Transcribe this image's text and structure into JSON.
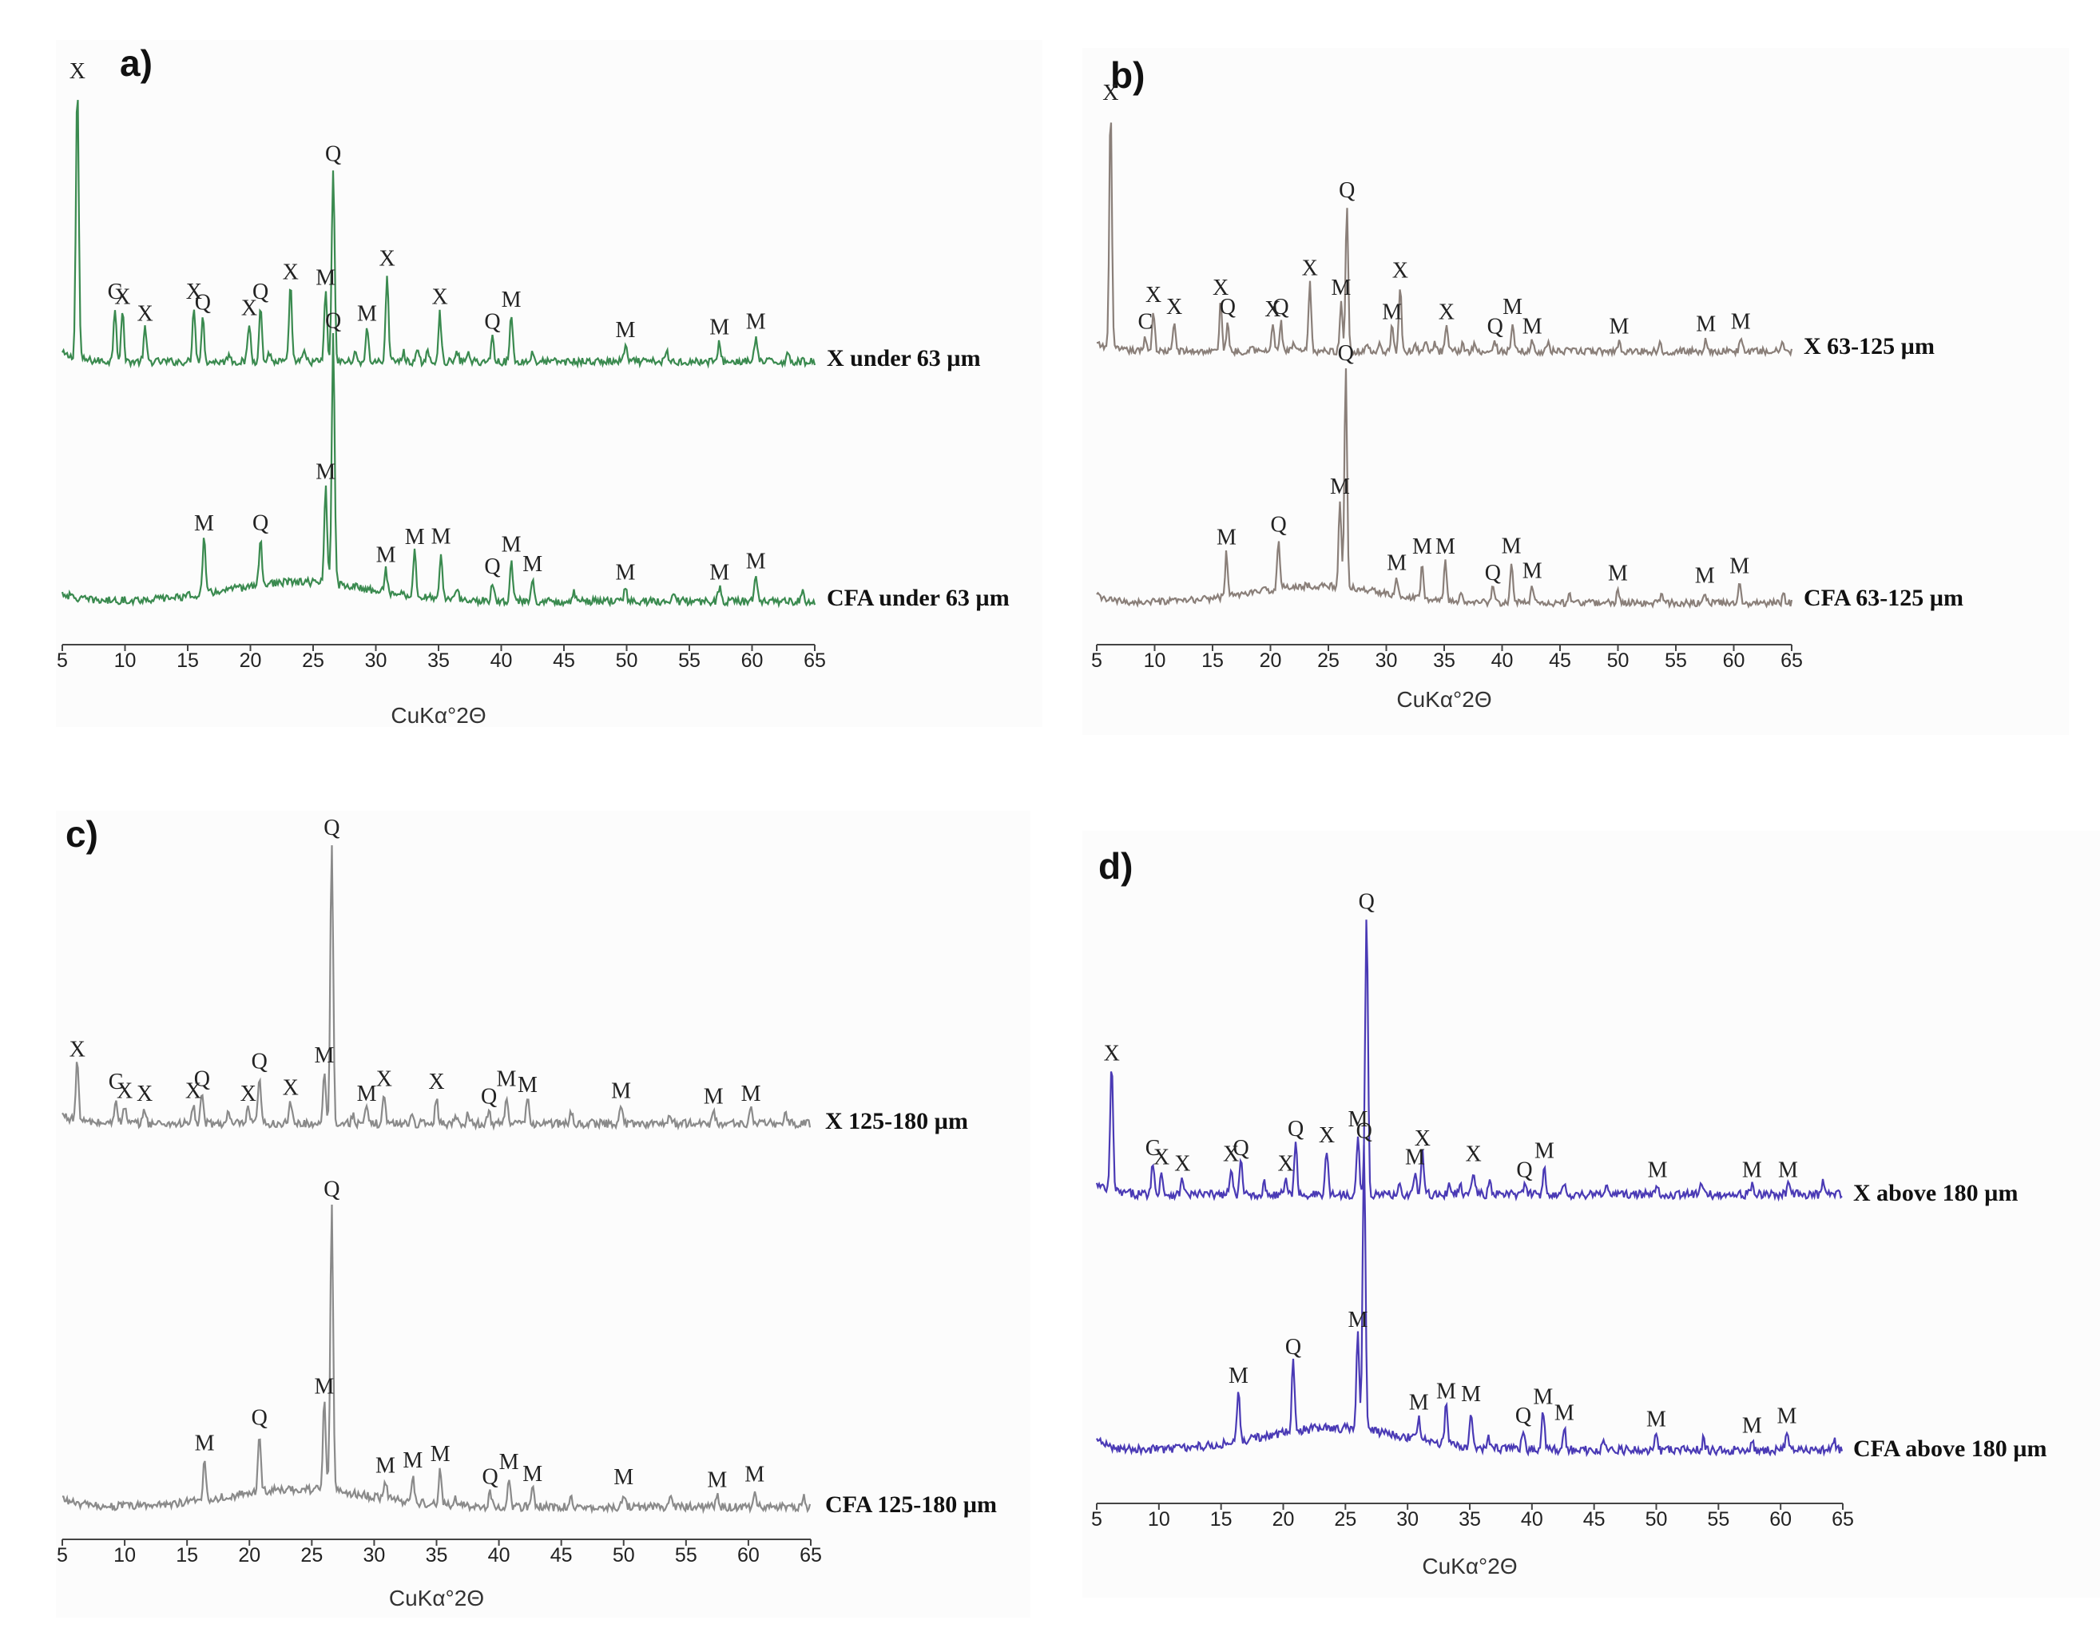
{
  "chart_data": [
    {
      "type": "line",
      "panel": "a)",
      "xlabel": "CuKα°2Θ",
      "xlim": [
        5,
        65
      ],
      "xticks": [
        5,
        10,
        15,
        20,
        25,
        30,
        35,
        40,
        45,
        50,
        55,
        60,
        65
      ],
      "color": "#3a8a4f",
      "series": [
        {
          "name": "X under 63 µm",
          "baseline": 0.05,
          "peaks": [
            {
              "x": 6.2,
              "label": "X",
              "h": 1.0
            },
            {
              "x": 9.2,
              "label": "C",
              "h": 0.2
            },
            {
              "x": 9.8,
              "label": "X",
              "h": 0.18
            },
            {
              "x": 11.6,
              "label": "X",
              "h": 0.12
            },
            {
              "x": 15.5,
              "label": "X",
              "h": 0.2
            },
            {
              "x": 16.2,
              "label": "Q",
              "h": 0.16
            },
            {
              "x": 19.9,
              "label": "X",
              "h": 0.14
            },
            {
              "x": 20.8,
              "label": "Q",
              "h": 0.2
            },
            {
              "x": 23.2,
              "label": "X",
              "h": 0.27
            },
            {
              "x": 26.0,
              "label": "M",
              "h": 0.25
            },
            {
              "x": 26.6,
              "label": "Q",
              "h": 0.7
            },
            {
              "x": 29.3,
              "label": "M",
              "h": 0.12
            },
            {
              "x": 30.9,
              "label": "X",
              "h": 0.32
            },
            {
              "x": 35.1,
              "label": "X",
              "h": 0.18
            },
            {
              "x": 39.3,
              "label": "Q",
              "h": 0.09
            },
            {
              "x": 40.8,
              "label": "M",
              "h": 0.17
            },
            {
              "x": 49.9,
              "label": "M",
              "h": 0.06
            },
            {
              "x": 57.4,
              "label": "M",
              "h": 0.07
            },
            {
              "x": 60.3,
              "label": "M",
              "h": 0.09
            }
          ],
          "minor": [
            18.3,
            21.5,
            24.3,
            28.3,
            32.2,
            33.3,
            34.1,
            36.5,
            37.3,
            42.5,
            53.2,
            62.9
          ]
        },
        {
          "name": "CFA under 63 µm",
          "baseline": 0.05,
          "hump": {
            "center": 24,
            "width": 8,
            "h": 0.07
          },
          "peaks": [
            {
              "x": 16.3,
              "label": "M",
              "h": 0.2
            },
            {
              "x": 20.8,
              "label": "Q",
              "h": 0.17
            },
            {
              "x": 26.0,
              "label": "M",
              "h": 0.35
            },
            {
              "x": 26.6,
              "label": "Q",
              "h": 0.9
            },
            {
              "x": 30.8,
              "label": "M",
              "h": 0.08
            },
            {
              "x": 33.1,
              "label": "M",
              "h": 0.16
            },
            {
              "x": 35.2,
              "label": "M",
              "h": 0.17
            },
            {
              "x": 39.3,
              "label": "Q",
              "h": 0.07
            },
            {
              "x": 40.8,
              "label": "M",
              "h": 0.15
            },
            {
              "x": 42.5,
              "label": "M",
              "h": 0.08
            },
            {
              "x": 49.9,
              "label": "M",
              "h": 0.05
            },
            {
              "x": 57.4,
              "label": "M",
              "h": 0.05
            },
            {
              "x": 60.3,
              "label": "M",
              "h": 0.09
            }
          ],
          "minor": [
            36.5,
            45.8,
            53.8,
            64.0
          ]
        }
      ]
    },
    {
      "type": "line",
      "panel": "b)",
      "xlabel": "CuKα°2Θ",
      "xlim": [
        5,
        65
      ],
      "xticks": [
        5,
        10,
        15,
        20,
        25,
        30,
        35,
        40,
        45,
        50,
        55,
        60,
        65
      ],
      "color": "#8a7f79",
      "series": [
        {
          "name": "X 63-125 µm",
          "baseline": 0.05,
          "peaks": [
            {
              "x": 6.2,
              "label": "X",
              "h": 1.0
            },
            {
              "x": 9.2,
              "label": "C",
              "h": 0.06
            },
            {
              "x": 9.9,
              "label": "X",
              "h": 0.17
            },
            {
              "x": 11.7,
              "label": "X",
              "h": 0.12
            },
            {
              "x": 15.7,
              "label": "X",
              "h": 0.2
            },
            {
              "x": 16.3,
              "label": "Q",
              "h": 0.12
            },
            {
              "x": 20.2,
              "label": "X",
              "h": 0.11
            },
            {
              "x": 20.9,
              "label": "Q",
              "h": 0.12
            },
            {
              "x": 23.4,
              "label": "X",
              "h": 0.28
            },
            {
              "x": 26.1,
              "label": "M",
              "h": 0.2
            },
            {
              "x": 26.6,
              "label": "Q",
              "h": 0.6
            },
            {
              "x": 30.5,
              "label": "M",
              "h": 0.1
            },
            {
              "x": 31.2,
              "label": "X",
              "h": 0.27
            },
            {
              "x": 35.2,
              "label": "X",
              "h": 0.1
            },
            {
              "x": 39.4,
              "label": "Q",
              "h": 0.04
            },
            {
              "x": 40.9,
              "label": "M",
              "h": 0.12
            },
            {
              "x": 42.6,
              "label": "M",
              "h": 0.04
            },
            {
              "x": 50.1,
              "label": "M",
              "h": 0.04
            },
            {
              "x": 57.6,
              "label": "M",
              "h": 0.05
            },
            {
              "x": 60.6,
              "label": "M",
              "h": 0.06
            }
          ],
          "minor": [
            18.4,
            22.0,
            28.3,
            29.5,
            32.5,
            33.4,
            34.2,
            36.6,
            37.6,
            44.0,
            53.6,
            64.2
          ]
        },
        {
          "name": "CFA 63-125 µm",
          "baseline": 0.05,
          "hump": {
            "center": 24,
            "width": 8,
            "h": 0.07
          },
          "peaks": [
            {
              "x": 16.2,
              "label": "M",
              "h": 0.18
            },
            {
              "x": 20.7,
              "label": "Q",
              "h": 0.2
            },
            {
              "x": 26.0,
              "label": "M",
              "h": 0.35
            },
            {
              "x": 26.5,
              "label": "Q",
              "h": 0.9
            },
            {
              "x": 30.9,
              "label": "M",
              "h": 0.07
            },
            {
              "x": 33.1,
              "label": "M",
              "h": 0.15
            },
            {
              "x": 35.1,
              "label": "M",
              "h": 0.16
            },
            {
              "x": 39.2,
              "label": "Q",
              "h": 0.06
            },
            {
              "x": 40.8,
              "label": "M",
              "h": 0.17
            },
            {
              "x": 42.6,
              "label": "M",
              "h": 0.07
            },
            {
              "x": 50.0,
              "label": "M",
              "h": 0.06
            },
            {
              "x": 57.5,
              "label": "M",
              "h": 0.05
            },
            {
              "x": 60.5,
              "label": "M",
              "h": 0.09
            }
          ],
          "minor": [
            36.5,
            45.8,
            53.8,
            64.3
          ]
        }
      ]
    },
    {
      "type": "line",
      "panel": "c)",
      "xlabel": "CuKα°2Θ",
      "xlim": [
        5,
        65
      ],
      "xticks": [
        5,
        10,
        15,
        20,
        25,
        30,
        35,
        40,
        45,
        50,
        55,
        60,
        65
      ],
      "color": "#8a8a8a",
      "series": [
        {
          "name": "X 125-180 µm",
          "baseline": 0.05,
          "peaks": [
            {
              "x": 6.2,
              "label": "X",
              "h": 0.2
            },
            {
              "x": 9.3,
              "label": "C",
              "h": 0.09
            },
            {
              "x": 10.0,
              "label": "X",
              "h": 0.06
            },
            {
              "x": 11.6,
              "label": "X",
              "h": 0.05
            },
            {
              "x": 15.5,
              "label": "X",
              "h": 0.06
            },
            {
              "x": 16.2,
              "label": "Q",
              "h": 0.1
            },
            {
              "x": 19.9,
              "label": "X",
              "h": 0.05
            },
            {
              "x": 20.8,
              "label": "Q",
              "h": 0.16
            },
            {
              "x": 23.3,
              "label": "X",
              "h": 0.07
            },
            {
              "x": 26.0,
              "label": "M",
              "h": 0.18
            },
            {
              "x": 26.6,
              "label": "Q",
              "h": 0.95
            },
            {
              "x": 29.4,
              "label": "M",
              "h": 0.05
            },
            {
              "x": 30.8,
              "label": "X",
              "h": 0.1
            },
            {
              "x": 35.0,
              "label": "X",
              "h": 0.09
            },
            {
              "x": 39.2,
              "label": "Q",
              "h": 0.04
            },
            {
              "x": 40.6,
              "label": "M",
              "h": 0.1
            },
            {
              "x": 42.3,
              "label": "M",
              "h": 0.08
            },
            {
              "x": 49.8,
              "label": "M",
              "h": 0.06
            },
            {
              "x": 57.2,
              "label": "M",
              "h": 0.04
            },
            {
              "x": 60.2,
              "label": "M",
              "h": 0.05
            }
          ],
          "minor": [
            18.3,
            28.3,
            33.0,
            36.5,
            37.5,
            45.8,
            53.7,
            63.0
          ]
        },
        {
          "name": "CFA 125-180 µm",
          "baseline": 0.05,
          "hump": {
            "center": 24,
            "width": 8,
            "h": 0.06
          },
          "peaks": [
            {
              "x": 16.4,
              "label": "M",
              "h": 0.14
            },
            {
              "x": 20.8,
              "label": "Q",
              "h": 0.2
            },
            {
              "x": 26.0,
              "label": "M",
              "h": 0.3
            },
            {
              "x": 26.6,
              "label": "Q",
              "h": 0.97
            },
            {
              "x": 30.9,
              "label": "M",
              "h": 0.06
            },
            {
              "x": 33.1,
              "label": "M",
              "h": 0.09
            },
            {
              "x": 35.3,
              "label": "M",
              "h": 0.12
            },
            {
              "x": 39.3,
              "label": "Q",
              "h": 0.05
            },
            {
              "x": 40.8,
              "label": "M",
              "h": 0.1
            },
            {
              "x": 42.7,
              "label": "M",
              "h": 0.06
            },
            {
              "x": 50.0,
              "label": "M",
              "h": 0.05
            },
            {
              "x": 57.5,
              "label": "M",
              "h": 0.04
            },
            {
              "x": 60.5,
              "label": "M",
              "h": 0.06
            }
          ],
          "minor": [
            36.5,
            45.8,
            53.8,
            64.4
          ]
        }
      ]
    },
    {
      "type": "line",
      "panel": "d)",
      "xlabel": "CuKα°2Θ",
      "xlim": [
        5,
        65
      ],
      "xticks": [
        5,
        10,
        15,
        20,
        25,
        30,
        35,
        40,
        45,
        50,
        55,
        60,
        65
      ],
      "color": "#4a3ab5",
      "series": [
        {
          "name": "X above 180 µm",
          "baseline": 0.05,
          "peaks": [
            {
              "x": 6.2,
              "label": "X",
              "h": 0.4
            },
            {
              "x": 9.5,
              "label": "C",
              "h": 0.1
            },
            {
              "x": 10.2,
              "label": "X",
              "h": 0.07
            },
            {
              "x": 11.9,
              "label": "X",
              "h": 0.05
            },
            {
              "x": 15.8,
              "label": "X",
              "h": 0.08
            },
            {
              "x": 16.6,
              "label": "Q",
              "h": 0.1
            },
            {
              "x": 20.2,
              "label": "X",
              "h": 0.05
            },
            {
              "x": 21.0,
              "label": "Q",
              "h": 0.16
            },
            {
              "x": 23.5,
              "label": "X",
              "h": 0.14
            },
            {
              "x": 26.0,
              "label": "M",
              "h": 0.19
            },
            {
              "x": 26.7,
              "label": "Q",
              "h": 0.88
            },
            {
              "x": 30.6,
              "label": "M",
              "h": 0.07
            },
            {
              "x": 31.2,
              "label": "X",
              "h": 0.13
            },
            {
              "x": 35.3,
              "label": "X",
              "h": 0.08
            },
            {
              "x": 39.4,
              "label": "Q",
              "h": 0.03
            },
            {
              "x": 41.0,
              "label": "M",
              "h": 0.09
            },
            {
              "x": 50.1,
              "label": "M",
              "h": 0.03
            },
            {
              "x": 57.7,
              "label": "M",
              "h": 0.03
            },
            {
              "x": 60.6,
              "label": "M",
              "h": 0.03
            }
          ],
          "minor": [
            18.5,
            29.3,
            33.4,
            34.2,
            36.6,
            42.6,
            46.0,
            53.6,
            63.4
          ]
        },
        {
          "name": "CFA above 180 µm",
          "baseline": 0.05,
          "hump": {
            "center": 24,
            "width": 8,
            "h": 0.07
          },
          "peaks": [
            {
              "x": 16.4,
              "label": "M",
              "h": 0.16
            },
            {
              "x": 20.8,
              "label": "Q",
              "h": 0.22
            },
            {
              "x": 26.0,
              "label": "M",
              "h": 0.3
            },
            {
              "x": 26.5,
              "label": "Q",
              "h": 0.9
            },
            {
              "x": 30.9,
              "label": "M",
              "h": 0.07
            },
            {
              "x": 33.1,
              "label": "M",
              "h": 0.12
            },
            {
              "x": 35.1,
              "label": "M",
              "h": 0.12
            },
            {
              "x": 39.3,
              "label": "Q",
              "h": 0.06
            },
            {
              "x": 40.9,
              "label": "M",
              "h": 0.12
            },
            {
              "x": 42.6,
              "label": "M",
              "h": 0.07
            },
            {
              "x": 50.0,
              "label": "M",
              "h": 0.05
            },
            {
              "x": 57.7,
              "label": "M",
              "h": 0.03
            },
            {
              "x": 60.5,
              "label": "M",
              "h": 0.06
            }
          ],
          "minor": [
            36.5,
            45.8,
            53.8,
            64.3
          ]
        }
      ]
    }
  ]
}
